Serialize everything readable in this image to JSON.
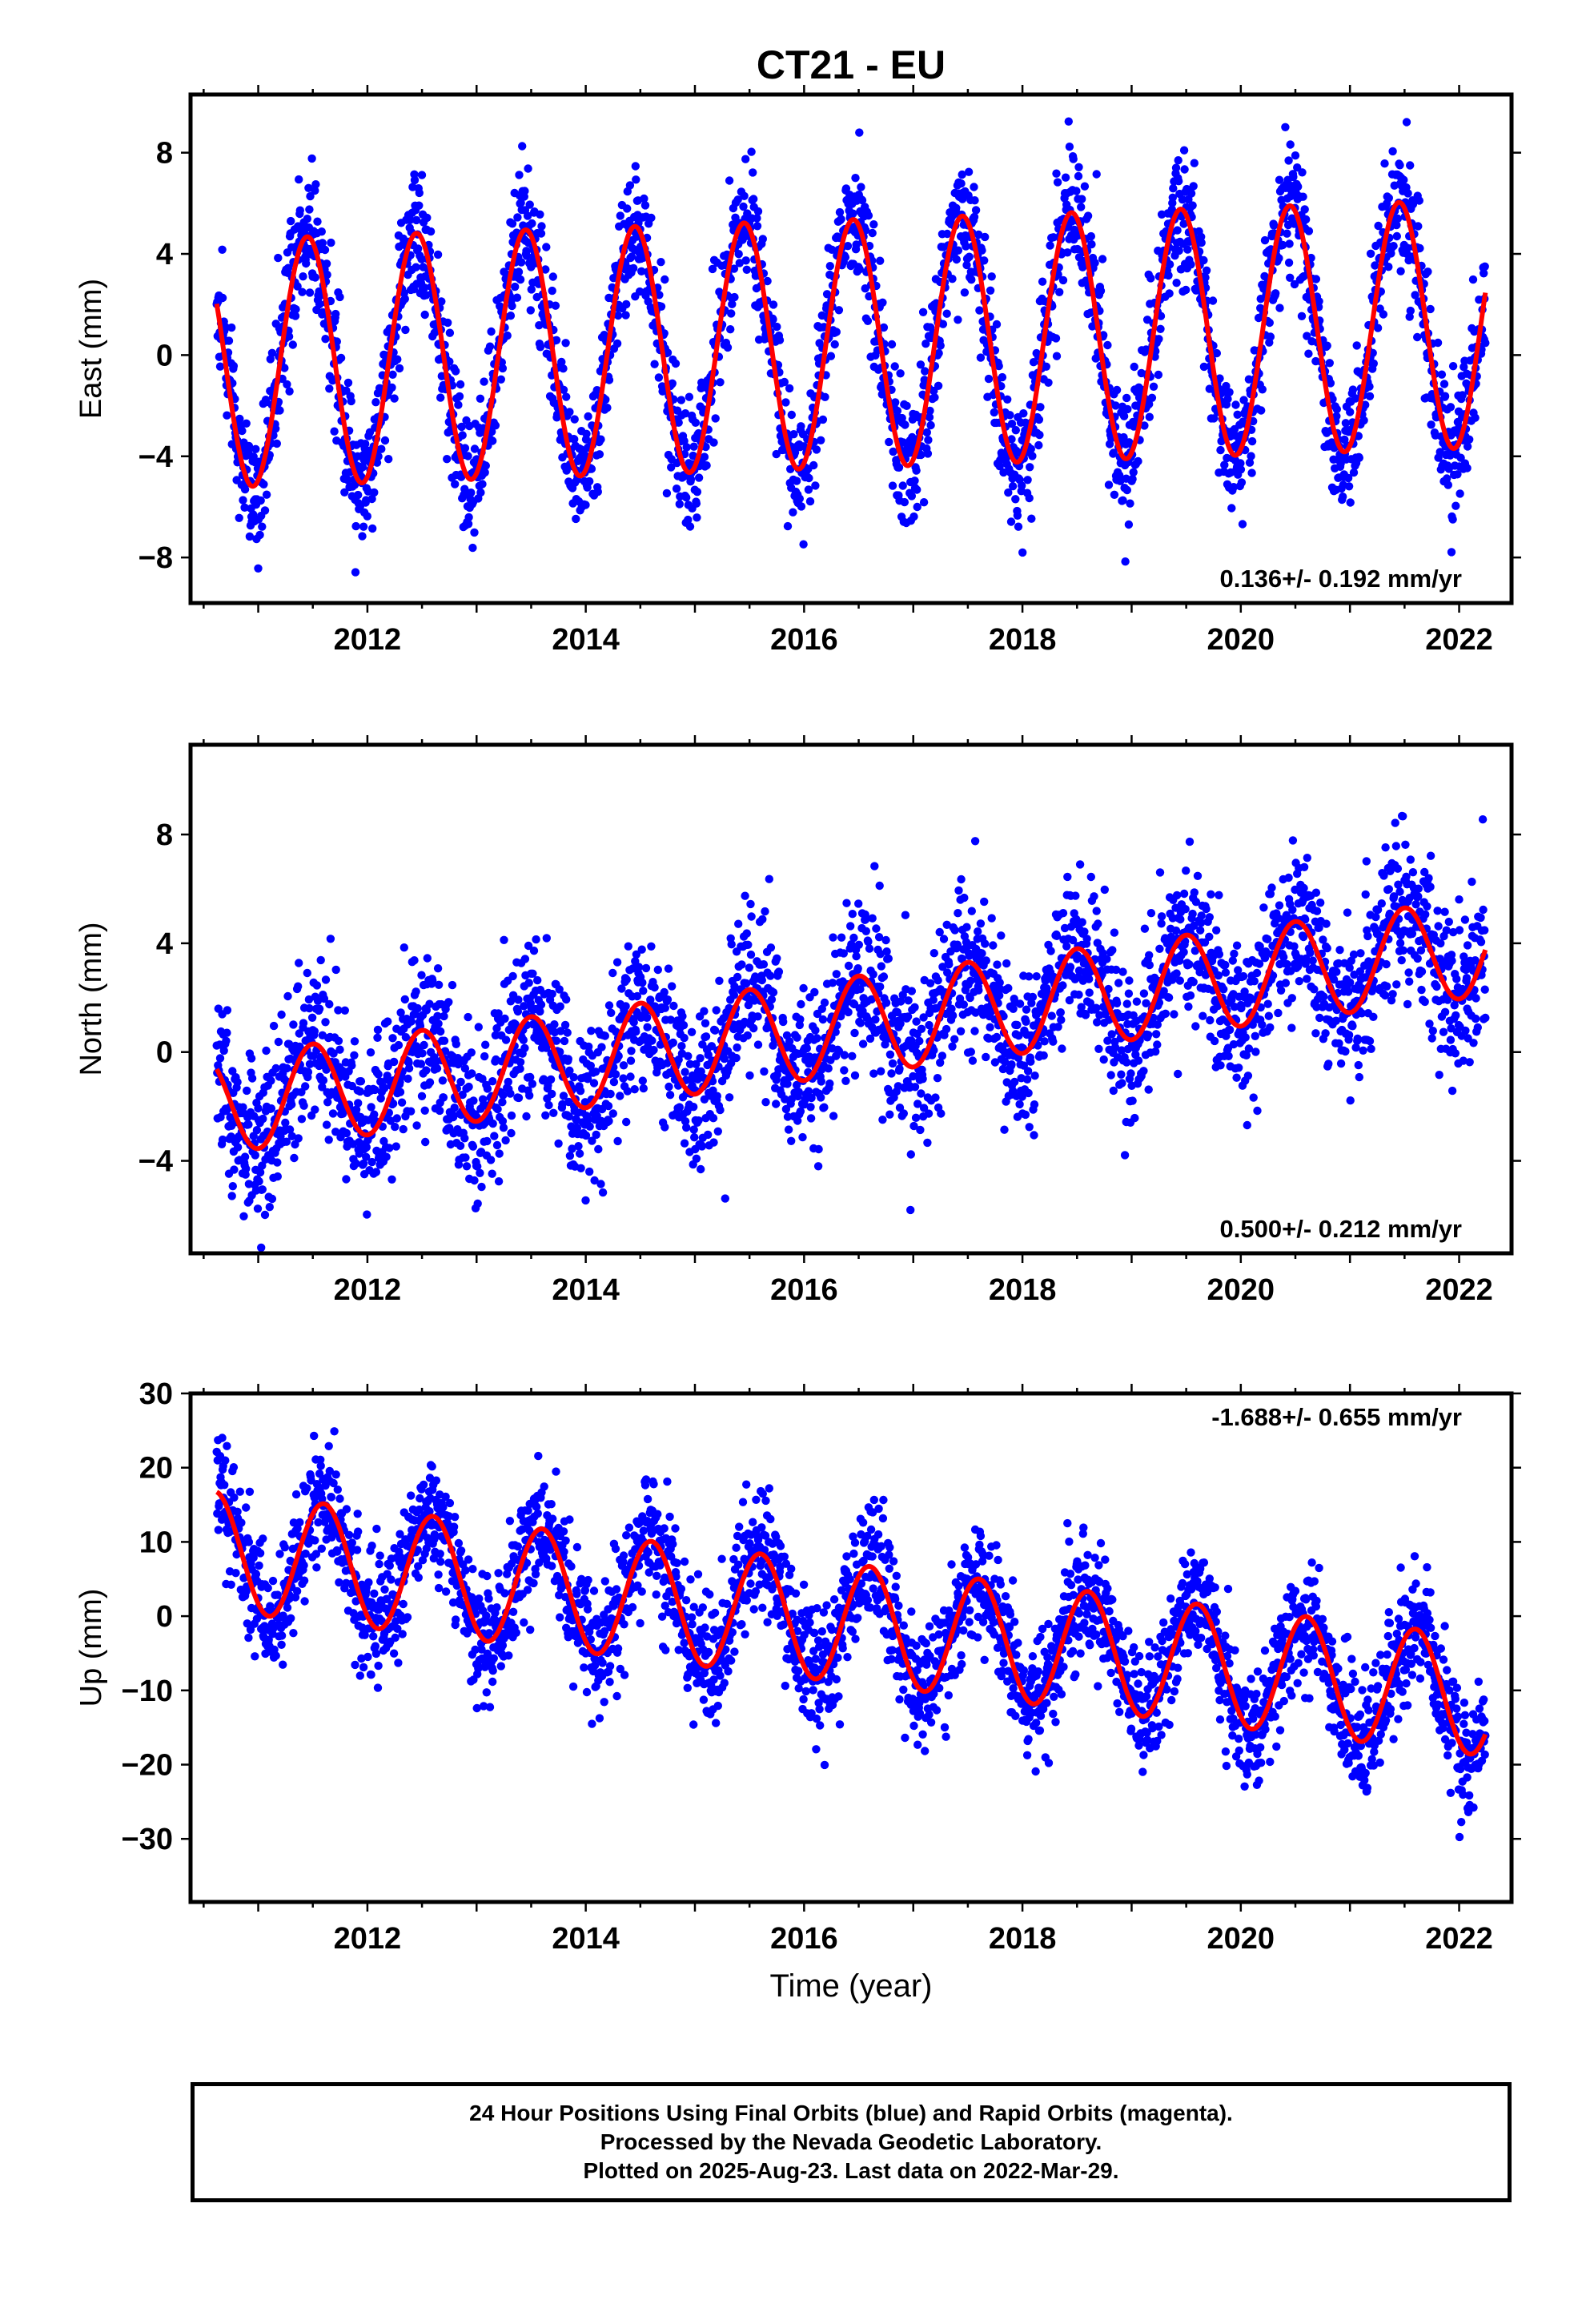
{
  "chart_data": [
    {
      "type": "scatter",
      "title": "CT21 - EU",
      "ylabel": "East (mm)",
      "xlabel": "",
      "xlim": [
        2010.38,
        2022.48
      ],
      "ylim": [
        -9.8,
        10.3
      ],
      "xticks": [
        2012,
        2014,
        2016,
        2018,
        2020,
        2022
      ],
      "yticks": [
        -8,
        -4,
        0,
        4,
        8
      ],
      "annotation": "0.136+/- 0.192 mm/yr",
      "grid": false,
      "series": [
        {
          "kind": "points",
          "color": "#0000ff",
          "start": 2010.62,
          "end": 2022.24,
          "trend_intercept": -0.35,
          "trend_slope": 0.136,
          "annual_amplitude": 4.9,
          "annual_phase_peak": 0.45,
          "noise_sd": 1.3,
          "count": 3000
        },
        {
          "kind": "line",
          "color": "#ff0000",
          "start": 2010.62,
          "end": 2022.24,
          "fit_intercept": -0.35,
          "fit_slope": 0.136,
          "annual_amplitude": 4.9,
          "annual_phase_peak": 0.45
        }
      ]
    },
    {
      "type": "scatter",
      "title": "",
      "ylabel": "North (mm)",
      "xlabel": "",
      "xlim": [
        2010.38,
        2022.48
      ],
      "ylim": [
        -7.4,
        11.3
      ],
      "xticks": [
        2012,
        2014,
        2016,
        2018,
        2020,
        2022
      ],
      "yticks": [
        -4,
        0,
        4,
        8
      ],
      "annotation": "0.500+/- 0.212 mm/yr",
      "grid": false,
      "series": [
        {
          "kind": "points",
          "color": "#0000ff",
          "start": 2010.62,
          "end": 2022.24,
          "trend_intercept": -2.0,
          "trend_slope": 0.5,
          "annual_amplitude": 1.8,
          "annual_phase_peak": 0.5,
          "noise_sd": 1.5,
          "count": 3000
        },
        {
          "kind": "line",
          "color": "#ff0000",
          "start": 2010.62,
          "end": 2022.24,
          "fit_intercept": -2.0,
          "fit_slope": 0.5,
          "annual_amplitude": 1.8,
          "annual_phase_peak": 0.5
        }
      ]
    },
    {
      "type": "scatter",
      "title": "",
      "ylabel": "Up (mm)",
      "xlabel": "Time (year)",
      "xlim": [
        2010.38,
        2022.48
      ],
      "ylim": [
        -38.5,
        30.0
      ],
      "xticks": [
        2012,
        2014,
        2016,
        2018,
        2020,
        2022
      ],
      "yticks": [
        -30,
        -20,
        -10,
        0,
        10,
        20,
        30
      ],
      "annotation": "-1.688+/- 0.655 mm/yr",
      "grid": false,
      "series": [
        {
          "kind": "points",
          "color": "#0000ff",
          "start": 2010.62,
          "end": 2022.24,
          "trend_intercept": 9.0,
          "trend_slope": -1.688,
          "annual_amplitude": 8.0,
          "annual_phase_peak": 0.6,
          "noise_sd": 4.0,
          "count": 3000
        },
        {
          "kind": "line",
          "color": "#ff0000",
          "start": 2010.62,
          "end": 2022.24,
          "fit_intercept": 9.0,
          "fit_slope": -1.688,
          "annual_amplitude": 8.0,
          "annual_phase_peak": 0.6
        }
      ]
    }
  ],
  "footer": {
    "line1": "24 Hour Positions Using Final Orbits (blue) and Rapid Orbits (magenta).",
    "line2": "Processed by the Nevada Geodetic Laboratory.",
    "line3": "Plotted on 2025-Aug-23. Last data on 2022-Mar-29."
  }
}
